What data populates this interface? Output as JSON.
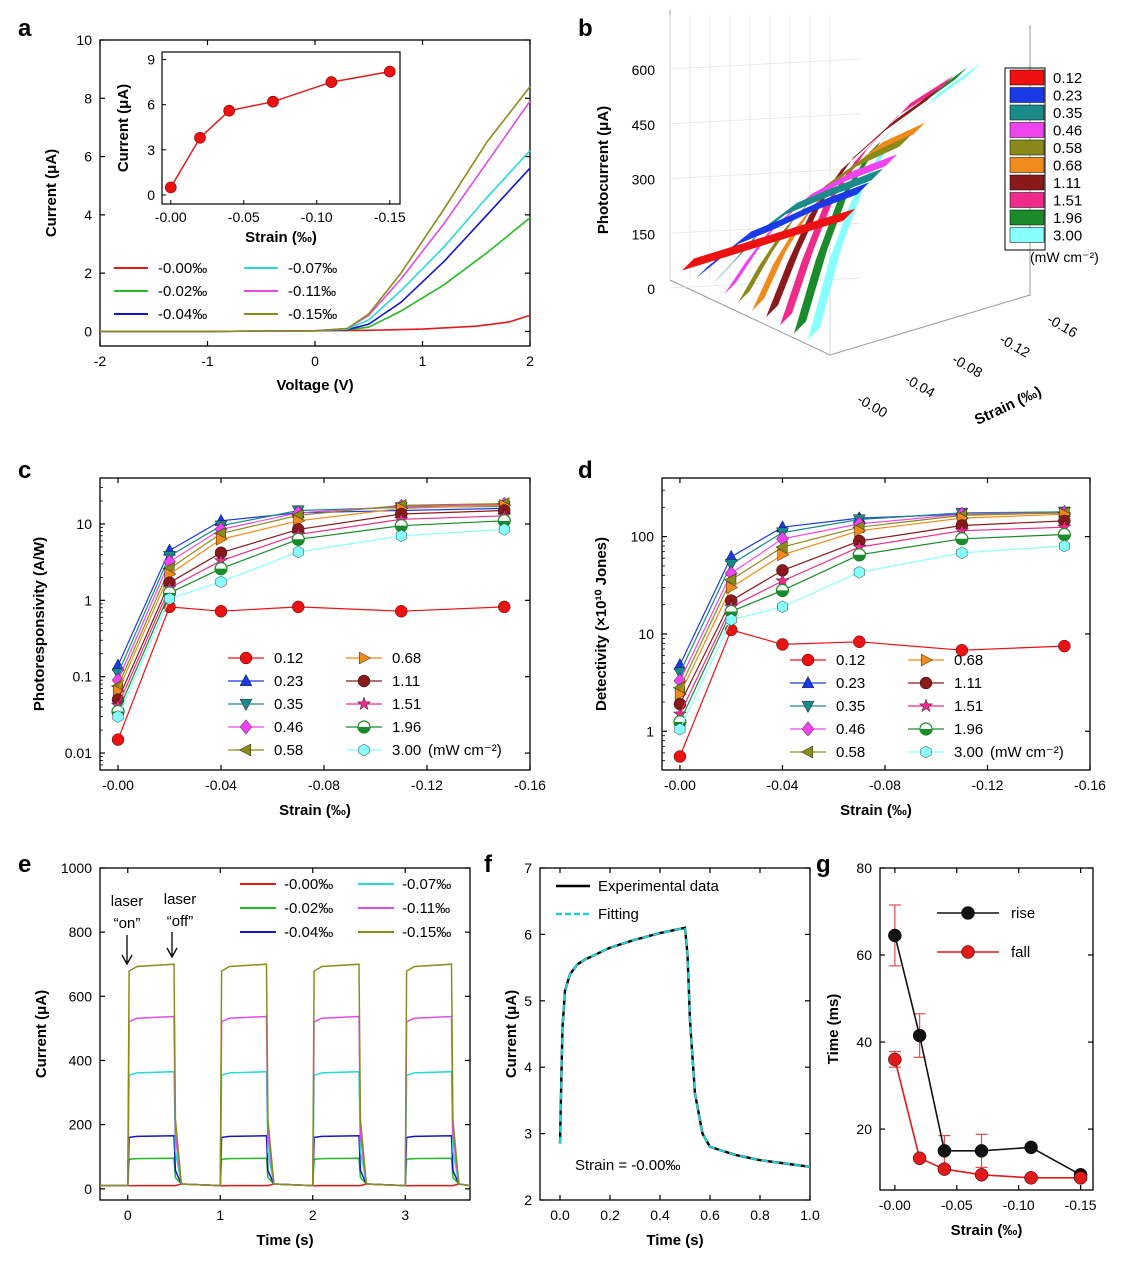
{
  "colors": {
    "s000": "#e31a1c",
    "s002": "#22bb22",
    "s004": "#1414c8",
    "s007": "#27dada",
    "s011": "#e14ae6",
    "s015": "#8c8c1a",
    "p012": "#ee1111",
    "p023": "#1a3ae6",
    "p035": "#1a8a8a",
    "p046": "#ee44ee",
    "p058": "#8a8a1a",
    "p068": "#f08a1a",
    "p111": "#8a1a1a",
    "p151": "#ee2a8a",
    "p196": "#1a8a2a",
    "p300": "#88ffff"
  },
  "panels": {
    "a": "a",
    "b": "b",
    "c": "c",
    "d": "d",
    "e": "e",
    "f": "f",
    "g": "g"
  },
  "chart_data": [
    {
      "id": "a",
      "type": "line",
      "xlabel": "Voltage (V)",
      "ylabel": "Current (μA)",
      "xlim": [
        -2,
        2
      ],
      "ylim": [
        0,
        10
      ],
      "xticks": [
        "-2",
        "-1",
        "0",
        "1",
        "2"
      ],
      "yticks": [
        "0",
        "2",
        "4",
        "6",
        "8",
        "10"
      ],
      "legend_title": "",
      "series": [
        {
          "name": "-0.00‰",
          "color_key": "s000",
          "x": [
            -2,
            -1,
            0,
            0.5,
            1,
            1.5,
            1.8,
            2
          ],
          "y": [
            0,
            0,
            0.02,
            0.04,
            0.08,
            0.18,
            0.32,
            0.55
          ]
        },
        {
          "name": "-0.02‰",
          "color_key": "s002",
          "x": [
            -2,
            -1,
            0,
            0.3,
            0.5,
            0.8,
            1.2,
            1.6,
            2
          ],
          "y": [
            0,
            0,
            0.02,
            0.05,
            0.15,
            0.7,
            1.6,
            2.7,
            3.9
          ]
        },
        {
          "name": "-0.04‰",
          "color_key": "s004",
          "x": [
            -2,
            -1,
            0,
            0.3,
            0.5,
            0.8,
            1.2,
            1.6,
            2
          ],
          "y": [
            0,
            0,
            0.02,
            0.06,
            0.25,
            1.0,
            2.4,
            4.0,
            5.6
          ]
        },
        {
          "name": "-0.07‰",
          "color_key": "s007",
          "x": [
            -2,
            -1,
            0,
            0.3,
            0.5,
            0.8,
            1.2,
            1.6,
            2
          ],
          "y": [
            0,
            0,
            0.02,
            0.08,
            0.4,
            1.4,
            2.9,
            4.6,
            6.2
          ]
        },
        {
          "name": "-0.11‰",
          "color_key": "s011",
          "x": [
            -2,
            -1,
            0,
            0.3,
            0.5,
            0.8,
            1.2,
            1.6,
            2
          ],
          "y": [
            0,
            0,
            0.02,
            0.1,
            0.55,
            1.8,
            3.7,
            5.8,
            7.9
          ]
        },
        {
          "name": "-0.15‰",
          "color_key": "s015",
          "x": [
            -2,
            -1,
            0,
            0.3,
            0.5,
            0.8,
            1.2,
            1.6,
            2
          ],
          "y": [
            0,
            0,
            0.02,
            0.1,
            0.6,
            2.0,
            4.2,
            6.5,
            8.4
          ]
        }
      ],
      "inset": {
        "type": "line",
        "xlabel": "Strain (‰)",
        "ylabel": "Current (μA)",
        "x": [
          0,
          -0.02,
          -0.04,
          -0.07,
          -0.11,
          -0.15
        ],
        "y": [
          0.5,
          3.8,
          5.6,
          6.2,
          7.5,
          8.2
        ],
        "xlim": [
          0,
          -0.15
        ],
        "ylim": [
          0,
          9
        ],
        "xticks": [
          "-0.00",
          "-0.05",
          "-0.10",
          "-0.15"
        ],
        "yticks": [
          "0",
          "3",
          "6",
          "9"
        ]
      }
    },
    {
      "id": "b",
      "type": "line3d",
      "ylabel": "Photocurrent (μA)",
      "strain_label": "Strain (‰)",
      "zticks": [
        "0",
        "150",
        "300",
        "450",
        "600"
      ],
      "strain_ticks": [
        "-0.00",
        "-0.04",
        "-0.08",
        "-0.12",
        "-0.16"
      ],
      "strain": [
        0,
        -0.02,
        -0.04,
        -0.07,
        -0.11,
        -0.15
      ],
      "legend_unit": "(mW cm⁻²)",
      "series": [
        {
          "name": "0.12",
          "color_key": "p012",
          "values": [
            4,
            5,
            6,
            8,
            10,
            12
          ]
        },
        {
          "name": "0.23",
          "color_key": "p023",
          "values": [
            10,
            40,
            70,
            80,
            100,
            110
          ]
        },
        {
          "name": "0.35",
          "color_key": "p035",
          "values": [
            15,
            60,
            110,
            150,
            165,
            175
          ]
        },
        {
          "name": "0.46",
          "color_key": "p046",
          "values": [
            20,
            90,
            150,
            200,
            230,
            240
          ]
        },
        {
          "name": "0.58",
          "color_key": "p058",
          "values": [
            25,
            110,
            180,
            250,
            300,
            320
          ]
        },
        {
          "name": "0.68",
          "color_key": "p068",
          "values": [
            30,
            140,
            220,
            300,
            360,
            380
          ]
        },
        {
          "name": "1.11",
          "color_key": "p111",
          "values": [
            40,
            170,
            280,
            380,
            450,
            500
          ]
        },
        {
          "name": "1.51",
          "color_key": "p151",
          "values": [
            45,
            200,
            330,
            430,
            520,
            560
          ]
        },
        {
          "name": "1.96",
          "color_key": "p196",
          "values": [
            50,
            230,
            370,
            480,
            560,
            610
          ]
        },
        {
          "name": "3.00",
          "color_key": "p300",
          "values": [
            60,
            260,
            400,
            520,
            600,
            650
          ]
        }
      ]
    },
    {
      "id": "c",
      "type": "line",
      "xlabel": "Strain (‰)",
      "ylabel": "Photoresponsivity (A/W)",
      "x": [
        0,
        -0.02,
        -0.04,
        -0.07,
        -0.11,
        -0.15
      ],
      "xlim": [
        0,
        -0.16
      ],
      "ylim": [
        0.006,
        40
      ],
      "yscale": "log",
      "xticks": [
        "-0.00",
        "-0.04",
        "-0.08",
        "-0.12",
        "-0.16"
      ],
      "yticks": [
        "0.01",
        "0.1",
        "1",
        "10"
      ],
      "legend_unit": "(mW cm⁻²)",
      "series": [
        {
          "name": "0.12",
          "color_key": "p012",
          "marker": "circle",
          "values": [
            0.015,
            0.82,
            0.72,
            0.82,
            0.72,
            0.82
          ]
        },
        {
          "name": "0.23",
          "color_key": "p023",
          "marker": "triangle",
          "values": [
            0.14,
            4.5,
            11,
            14,
            15,
            16
          ]
        },
        {
          "name": "0.35",
          "color_key": "p035",
          "marker": "triangle-down",
          "values": [
            0.11,
            3.8,
            9.5,
            15,
            16.5,
            17
          ]
        },
        {
          "name": "0.46",
          "color_key": "p046",
          "marker": "diamond",
          "values": [
            0.09,
            3.2,
            8.5,
            14,
            17,
            18
          ]
        },
        {
          "name": "0.58",
          "color_key": "p058",
          "marker": "triangle-left",
          "values": [
            0.075,
            2.6,
            7.5,
            13,
            17.5,
            18.5
          ]
        },
        {
          "name": "0.68",
          "color_key": "p068",
          "marker": "triangle-right",
          "values": [
            0.065,
            2.2,
            6.3,
            11,
            16,
            17.5
          ]
        },
        {
          "name": "1.11",
          "color_key": "p111",
          "marker": "circle",
          "values": [
            0.05,
            1.7,
            4.2,
            8.5,
            13.5,
            15
          ]
        },
        {
          "name": "1.51",
          "color_key": "p151",
          "marker": "star",
          "values": [
            0.042,
            1.45,
            3.3,
            7.3,
            11.5,
            12.8
          ]
        },
        {
          "name": "1.96",
          "color_key": "p196",
          "marker": "circle-half",
          "values": [
            0.035,
            1.25,
            2.6,
            6.3,
            9.5,
            11
          ]
        },
        {
          "name": "3.00",
          "color_key": "p300",
          "marker": "hexagon",
          "values": [
            0.03,
            1.05,
            1.75,
            4.3,
            7.0,
            8.5
          ]
        }
      ]
    },
    {
      "id": "d",
      "type": "line",
      "xlabel": "Strain (‰)",
      "ylabel": "Detectivity (×10¹⁰ Jones)",
      "x": [
        0,
        -0.02,
        -0.04,
        -0.07,
        -0.11,
        -0.15
      ],
      "xlim": [
        0,
        -0.16
      ],
      "ylim": [
        0.4,
        400
      ],
      "yscale": "log",
      "xticks": [
        "-0.00",
        "-0.04",
        "-0.08",
        "-0.12",
        "-0.16"
      ],
      "yticks": [
        "1",
        "10",
        "100"
      ],
      "legend_unit": "(mW cm⁻²)",
      "series": [
        {
          "name": "0.12",
          "color_key": "p012",
          "marker": "circle",
          "values": [
            0.55,
            11,
            7.8,
            8.3,
            6.8,
            7.5
          ]
        },
        {
          "name": "0.23",
          "color_key": "p023",
          "marker": "triangle",
          "values": [
            4.8,
            62,
            125,
            155,
            170,
            180
          ]
        },
        {
          "name": "0.35",
          "color_key": "p035",
          "marker": "triangle-down",
          "values": [
            4.0,
            52,
            110,
            150,
            175,
            180
          ]
        },
        {
          "name": "0.46",
          "color_key": "p046",
          "marker": "diamond",
          "values": [
            3.3,
            42,
            95,
            135,
            170,
            175
          ]
        },
        {
          "name": "0.58",
          "color_key": "p058",
          "marker": "triangle-left",
          "values": [
            2.8,
            36,
            78,
            125,
            165,
            175
          ]
        },
        {
          "name": "0.68",
          "color_key": "p068",
          "marker": "triangle-right",
          "values": [
            2.4,
            30,
            65,
            115,
            155,
            170
          ]
        },
        {
          "name": "1.11",
          "color_key": "p111",
          "marker": "circle",
          "values": [
            1.9,
            22,
            45,
            90,
            130,
            145
          ]
        },
        {
          "name": "1.51",
          "color_key": "p151",
          "marker": "star",
          "values": [
            1.5,
            19,
            35,
            78,
            115,
            125
          ]
        },
        {
          "name": "1.96",
          "color_key": "p196",
          "marker": "circle-half",
          "values": [
            1.25,
            17,
            28,
            65,
            95,
            105
          ]
        },
        {
          "name": "3.00",
          "color_key": "p300",
          "marker": "hexagon",
          "values": [
            1.05,
            14,
            19,
            43,
            68,
            80
          ]
        }
      ]
    },
    {
      "id": "e",
      "type": "line",
      "xlabel": "Time (s)",
      "ylabel": "Current (μA)",
      "xlim": [
        -0.3,
        3.7
      ],
      "ylim": [
        0,
        1000
      ],
      "xticks": [
        "0",
        "1",
        "2",
        "3"
      ],
      "yticks": [
        "0",
        "200",
        "400",
        "600",
        "800",
        "1000"
      ],
      "pulse": {
        "on_times": [
          0,
          1,
          2,
          3
        ],
        "duration": 0.5,
        "dark": 10
      },
      "series": [
        {
          "name": "-0.00‰",
          "color_key": "s000",
          "on_level": 10
        },
        {
          "name": "-0.02‰",
          "color_key": "s002",
          "on_level": 95
        },
        {
          "name": "-0.04‰",
          "color_key": "s004",
          "on_level": 165
        },
        {
          "name": "-0.07‰",
          "color_key": "s007",
          "on_level": 365
        },
        {
          "name": "-0.11‰",
          "color_key": "s011",
          "on_level": 537
        },
        {
          "name": "-0.15‰",
          "color_key": "s015",
          "on_level": 700
        }
      ],
      "annotations": {
        "on_line1": "laser",
        "on_line2": "“on”",
        "off_line1": "laser",
        "off_line2": "“off”"
      }
    },
    {
      "id": "f",
      "type": "line",
      "xlabel": "Time (s)",
      "ylabel": "Current (μA)",
      "xlim": [
        -0.08,
        1.0
      ],
      "ylim": [
        2,
        7
      ],
      "xticks": [
        "0.0",
        "0.2",
        "0.4",
        "0.6",
        "0.8",
        "1.0"
      ],
      "yticks": [
        "2",
        "3",
        "4",
        "5",
        "6",
        "7"
      ],
      "series": [
        {
          "name": "Experimental data",
          "color": "#000000",
          "x": [
            0,
            0.005,
            0.01,
            0.02,
            0.04,
            0.07,
            0.1,
            0.2,
            0.3,
            0.4,
            0.5,
            0.51,
            0.52,
            0.54,
            0.57,
            0.6,
            0.7,
            0.8,
            0.9,
            1.0
          ],
          "y": [
            2.85,
            3.8,
            4.6,
            5.15,
            5.4,
            5.55,
            5.62,
            5.8,
            5.92,
            6.02,
            6.1,
            5.7,
            4.7,
            3.6,
            3.0,
            2.8,
            2.68,
            2.6,
            2.55,
            2.5
          ]
        },
        {
          "name": "Fitting",
          "color": "#22d2d6",
          "dashed": true,
          "x": [
            0,
            0.005,
            0.01,
            0.02,
            0.04,
            0.07,
            0.1,
            0.2,
            0.3,
            0.4,
            0.5,
            0.51,
            0.52,
            0.54,
            0.57,
            0.6,
            0.7,
            0.8,
            0.9,
            1.0
          ],
          "y": [
            2.85,
            3.8,
            4.6,
            5.15,
            5.4,
            5.55,
            5.62,
            5.8,
            5.92,
            6.02,
            6.1,
            5.7,
            4.7,
            3.6,
            3.0,
            2.8,
            2.68,
            2.6,
            2.55,
            2.5
          ]
        }
      ],
      "annotation": "Strain = -0.00‰"
    },
    {
      "id": "g",
      "type": "line",
      "xlabel": "Strain (‰)",
      "ylabel": "Time (ms)",
      "x": [
        0,
        -0.02,
        -0.04,
        -0.07,
        -0.11,
        -0.15
      ],
      "xlim": [
        0.012,
        -0.16
      ],
      "ylim": [
        6,
        80
      ],
      "xticks": [
        "-0.00",
        "-0.05",
        "-0.10",
        "-0.15"
      ],
      "yticks": [
        "20",
        "40",
        "60",
        "80"
      ],
      "series": [
        {
          "name": "rise",
          "color": "#111111",
          "values": [
            64.5,
            41.5,
            15,
            15,
            15.8,
            9.5
          ],
          "errors": [
            7,
            5,
            3.5,
            3.8,
            0,
            0
          ]
        },
        {
          "name": "fall",
          "color": "#e31a1c",
          "values": [
            36,
            13.3,
            10.8,
            9.5,
            8.8,
            8.8
          ],
          "errors": [
            1.8,
            0,
            0,
            0,
            0,
            0
          ]
        }
      ]
    }
  ]
}
